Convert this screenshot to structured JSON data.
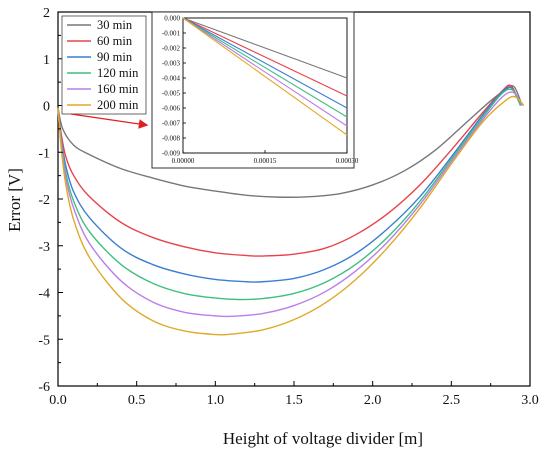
{
  "chart_data": {
    "type": "line",
    "xlabel": "Height of voltage divider [m]",
    "ylabel": "Error [V]",
    "xlim": [
      0.0,
      3.0
    ],
    "ylim": [
      -6,
      2
    ],
    "xticks": [
      0.0,
      0.5,
      1.0,
      1.5,
      2.0,
      2.5,
      3.0
    ],
    "xtick_labels": [
      "0.0",
      "0.5",
      "1.0",
      "1.5",
      "2.0",
      "2.5",
      "3.0"
    ],
    "yticks": [
      2,
      1,
      0,
      -1,
      -2,
      -3,
      -4,
      -5,
      -6
    ],
    "ytick_labels": [
      "2",
      "1",
      "0",
      "-1",
      "-2",
      "-3",
      "-4",
      "-5",
      "-6"
    ],
    "legend_position": "top-left",
    "grid": false,
    "series": [
      {
        "name": "30 min",
        "color": "#777777",
        "points": [
          [
            0,
            -0.05
          ],
          [
            0.03,
            -0.5
          ],
          [
            0.1,
            -0.85
          ],
          [
            0.2,
            -1.05
          ],
          [
            0.4,
            -1.35
          ],
          [
            0.6,
            -1.55
          ],
          [
            0.8,
            -1.72
          ],
          [
            1.0,
            -1.83
          ],
          [
            1.2,
            -1.92
          ],
          [
            1.4,
            -1.96
          ],
          [
            1.6,
            -1.95
          ],
          [
            1.8,
            -1.88
          ],
          [
            2.0,
            -1.7
          ],
          [
            2.2,
            -1.4
          ],
          [
            2.4,
            -0.95
          ],
          [
            2.6,
            -0.35
          ],
          [
            2.75,
            0.1
          ],
          [
            2.85,
            0.35
          ],
          [
            2.9,
            0.4
          ],
          [
            2.95,
            0.0
          ]
        ]
      },
      {
        "name": "60 min",
        "color": "#e8434a",
        "points": [
          [
            0,
            -0.05
          ],
          [
            0.02,
            -0.6
          ],
          [
            0.05,
            -1.1
          ],
          [
            0.1,
            -1.5
          ],
          [
            0.2,
            -1.95
          ],
          [
            0.4,
            -2.5
          ],
          [
            0.6,
            -2.82
          ],
          [
            0.8,
            -3.02
          ],
          [
            1.0,
            -3.15
          ],
          [
            1.2,
            -3.21
          ],
          [
            1.3,
            -3.22
          ],
          [
            1.5,
            -3.18
          ],
          [
            1.7,
            -3.05
          ],
          [
            1.9,
            -2.75
          ],
          [
            2.1,
            -2.3
          ],
          [
            2.3,
            -1.7
          ],
          [
            2.5,
            -0.95
          ],
          [
            2.7,
            -0.15
          ],
          [
            2.82,
            0.3
          ],
          [
            2.88,
            0.42
          ],
          [
            2.94,
            0.0
          ]
        ]
      },
      {
        "name": "90 min",
        "color": "#3b7fd3",
        "points": [
          [
            0,
            -0.05
          ],
          [
            0.02,
            -0.7
          ],
          [
            0.05,
            -1.3
          ],
          [
            0.1,
            -1.85
          ],
          [
            0.2,
            -2.4
          ],
          [
            0.4,
            -3.05
          ],
          [
            0.6,
            -3.4
          ],
          [
            0.8,
            -3.6
          ],
          [
            1.0,
            -3.72
          ],
          [
            1.2,
            -3.77
          ],
          [
            1.3,
            -3.77
          ],
          [
            1.5,
            -3.7
          ],
          [
            1.7,
            -3.5
          ],
          [
            1.9,
            -3.15
          ],
          [
            2.1,
            -2.62
          ],
          [
            2.3,
            -1.95
          ],
          [
            2.5,
            -1.1
          ],
          [
            2.7,
            -0.2
          ],
          [
            2.82,
            0.28
          ],
          [
            2.88,
            0.38
          ],
          [
            2.94,
            0.0
          ]
        ]
      },
      {
        "name": "120 min",
        "color": "#3fbf7f",
        "points": [
          [
            0,
            -0.05
          ],
          [
            0.02,
            -0.75
          ],
          [
            0.05,
            -1.45
          ],
          [
            0.1,
            -2.05
          ],
          [
            0.2,
            -2.7
          ],
          [
            0.4,
            -3.4
          ],
          [
            0.6,
            -3.8
          ],
          [
            0.8,
            -4.02
          ],
          [
            1.0,
            -4.12
          ],
          [
            1.15,
            -4.15
          ],
          [
            1.3,
            -4.13
          ],
          [
            1.5,
            -4.02
          ],
          [
            1.7,
            -3.78
          ],
          [
            1.9,
            -3.38
          ],
          [
            2.1,
            -2.8
          ],
          [
            2.3,
            -2.05
          ],
          [
            2.5,
            -1.15
          ],
          [
            2.7,
            -0.25
          ],
          [
            2.82,
            0.25
          ],
          [
            2.89,
            0.33
          ],
          [
            2.94,
            0.0
          ]
        ]
      },
      {
        "name": "160 min",
        "color": "#b97fe6",
        "points": [
          [
            0,
            -0.05
          ],
          [
            0.02,
            -0.8
          ],
          [
            0.05,
            -1.55
          ],
          [
            0.1,
            -2.2
          ],
          [
            0.2,
            -2.95
          ],
          [
            0.4,
            -3.75
          ],
          [
            0.6,
            -4.2
          ],
          [
            0.8,
            -4.42
          ],
          [
            1.0,
            -4.5
          ],
          [
            1.1,
            -4.51
          ],
          [
            1.3,
            -4.45
          ],
          [
            1.5,
            -4.28
          ],
          [
            1.7,
            -3.98
          ],
          [
            1.9,
            -3.52
          ],
          [
            2.1,
            -2.9
          ],
          [
            2.3,
            -2.12
          ],
          [
            2.5,
            -1.2
          ],
          [
            2.7,
            -0.3
          ],
          [
            2.83,
            0.2
          ],
          [
            2.9,
            0.27
          ],
          [
            2.95,
            0.0
          ]
        ]
      },
      {
        "name": "200 min",
        "color": "#e0a927",
        "points": [
          [
            0,
            -0.05
          ],
          [
            0.02,
            -0.9
          ],
          [
            0.05,
            -1.7
          ],
          [
            0.1,
            -2.45
          ],
          [
            0.2,
            -3.25
          ],
          [
            0.4,
            -4.12
          ],
          [
            0.6,
            -4.6
          ],
          [
            0.8,
            -4.82
          ],
          [
            1.0,
            -4.9
          ],
          [
            1.1,
            -4.89
          ],
          [
            1.3,
            -4.8
          ],
          [
            1.5,
            -4.58
          ],
          [
            1.7,
            -4.22
          ],
          [
            1.9,
            -3.7
          ],
          [
            2.1,
            -3.02
          ],
          [
            2.3,
            -2.2
          ],
          [
            2.5,
            -1.25
          ],
          [
            2.7,
            -0.35
          ],
          [
            2.85,
            0.12
          ],
          [
            2.91,
            0.18
          ],
          [
            2.96,
            0.0
          ]
        ]
      }
    ],
    "inset": {
      "xlim": [
        0,
        0.0003
      ],
      "ylim": [
        -0.009,
        0.0
      ],
      "xtick_labels": [
        "0.00000",
        "0.00015",
        "0.00030"
      ],
      "xticks": [
        0,
        0.00015,
        0.0003
      ],
      "yticks": [
        0,
        -0.001,
        -0.002,
        -0.003,
        -0.004,
        -0.005,
        -0.006,
        -0.007,
        -0.008,
        -0.009
      ],
      "ytick_labels": [
        "0.000",
        "-0.001",
        "-0.002",
        "-0.003",
        "-0.004",
        "-0.005",
        "-0.006",
        "-0.007",
        "-0.008",
        "-0.009"
      ],
      "end_values": [
        -0.004,
        -0.0052,
        -0.006,
        -0.0066,
        -0.0072,
        -0.0078
      ]
    }
  }
}
